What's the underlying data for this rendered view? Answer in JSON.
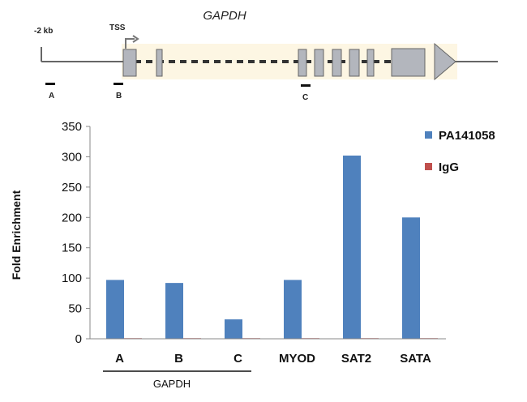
{
  "gene_diagram": {
    "gene_name": "GAPDH",
    "upstream_label": "-2 kb",
    "tss_label": "TSS",
    "amplicons": [
      "A",
      "B",
      "C"
    ]
  },
  "chart_data": {
    "type": "bar",
    "categories": [
      "A",
      "B",
      "C",
      "MYOD",
      "SAT2",
      "SATA"
    ],
    "group_label": "GAPDH",
    "grouped_categories": [
      "A",
      "B",
      "C"
    ],
    "series": [
      {
        "name": "PA141058",
        "color": "#4f81bd",
        "values": [
          97,
          92,
          32,
          97,
          302,
          200
        ]
      },
      {
        "name": "IgG",
        "color": "#c0504d",
        "values": [
          1,
          1,
          1,
          1,
          1,
          1
        ]
      }
    ],
    "ylabel": "Fold Enrichment",
    "ylim": [
      0,
      350
    ],
    "yticks": [
      0,
      50,
      100,
      150,
      200,
      250,
      300,
      350
    ],
    "legend": "top-right",
    "grid": false
  }
}
